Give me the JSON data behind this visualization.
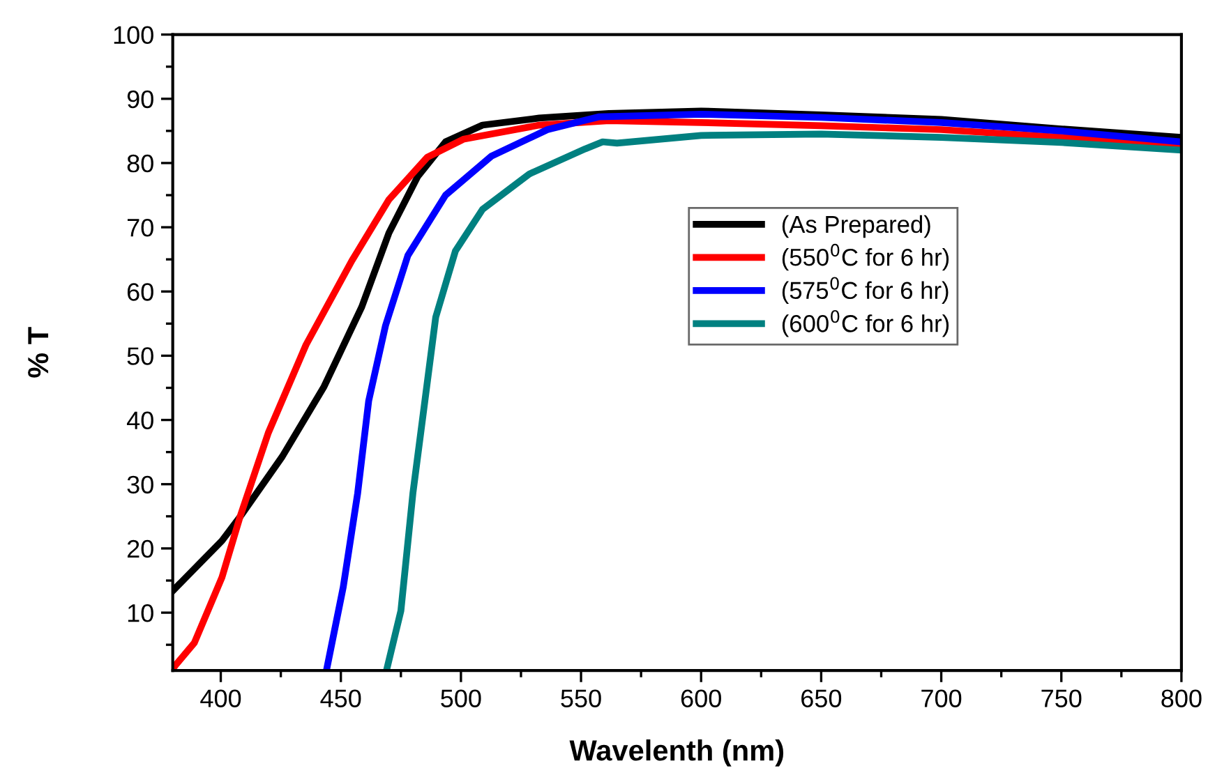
{
  "chart_data": {
    "type": "line",
    "xlabel": "Wavelenth (nm)",
    "ylabel": "% T",
    "xlim": [
      380,
      800
    ],
    "xticks": [
      400,
      450,
      500,
      550,
      600,
      650,
      700,
      750,
      800
    ],
    "ylim": [
      1,
      100
    ],
    "yticks": [
      10,
      20,
      30,
      40,
      50,
      60,
      70,
      80,
      90,
      100
    ],
    "legend": "right",
    "grid": false,
    "marker": "none",
    "line_style": "solid",
    "series": [
      {
        "name": "(As Prepared)",
        "color": "#000000",
        "x": [
          380,
          400.5,
          408,
          425.6,
          443,
          458.7,
          470,
          482,
          493.6,
          509,
          532.6,
          561.6,
          600,
          650,
          700,
          750,
          800
        ],
        "values": [
          13.4,
          21.2,
          24.9,
          34.3,
          45.2,
          57.6,
          69.1,
          77.9,
          83.3,
          85.9,
          87,
          87.7,
          88.1,
          87.5,
          86.8,
          85.3,
          84
        ]
      },
      {
        "name": "(550$^{0}$C for 6 hr)",
        "color": "#ff0000",
        "x": [
          380,
          389,
          400.5,
          408,
          419.8,
          435.5,
          454.6,
          470,
          486,
          501,
          532.6,
          561.6,
          600,
          650,
          700,
          750,
          800
        ],
        "values": [
          1.3,
          5.3,
          15.5,
          24.9,
          38,
          51.7,
          64.8,
          74.3,
          80.9,
          83.7,
          85.9,
          86.6,
          86.3,
          85.8,
          85.2,
          84,
          82.6
        ]
      },
      {
        "name": "(575$^{0}$C for 6 hr)",
        "color": "#0000ff",
        "x": [
          444,
          451,
          457,
          461.6,
          468.6,
          477.9,
          493.6,
          512.8,
          536,
          557.6,
          600,
          650,
          700,
          750,
          800
        ],
        "values": [
          1,
          14,
          28.6,
          43,
          54.7,
          65.6,
          75,
          81.1,
          85.2,
          87.2,
          87.6,
          87.1,
          86.3,
          85,
          83.3
        ]
      },
      {
        "name": "(600$^{0}$C for 6 hr)",
        "color": "#008080",
        "x": [
          469,
          475,
          480,
          485,
          489.5,
          497.7,
          509,
          528.5,
          551.7,
          559,
          565,
          600,
          650,
          700,
          750,
          800
        ],
        "values": [
          1,
          10.3,
          28.6,
          43,
          56,
          66.3,
          72.8,
          78.3,
          82.2,
          83.3,
          83.1,
          84.3,
          84.5,
          84,
          83.2,
          82
        ]
      }
    ]
  }
}
